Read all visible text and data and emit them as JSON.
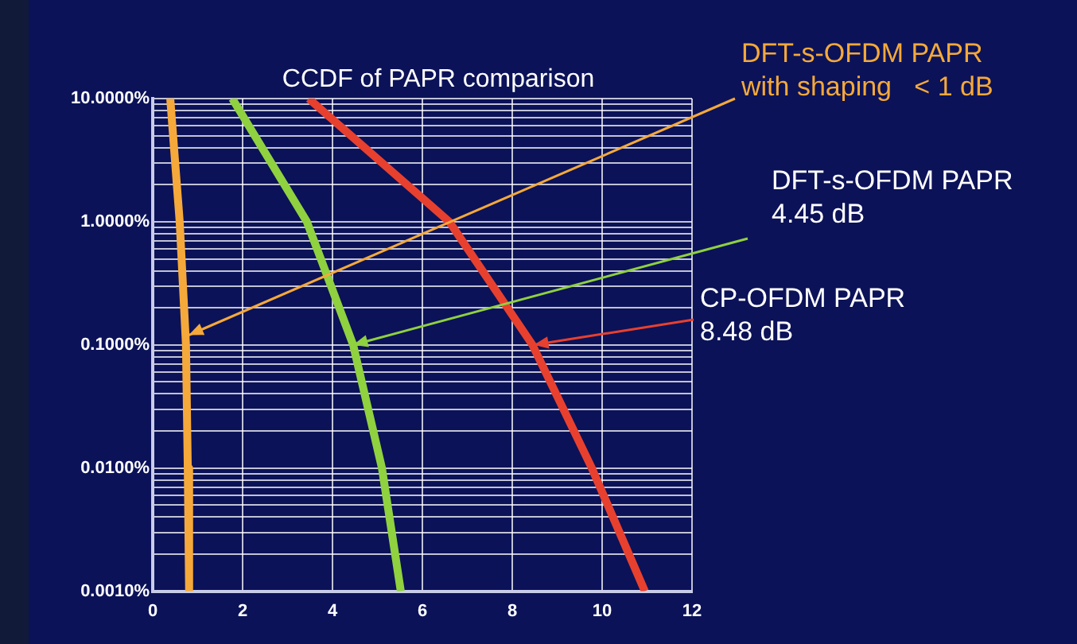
{
  "chart_data": {
    "type": "line",
    "title": "CCDF of PAPR comparison",
    "series": [
      {
        "color": "#f5a93a",
        "x": [
          0.39,
          0.6,
          0.74,
          0.78,
          0.81
        ],
        "values": [
          10,
          1,
          0.1,
          0.01,
          0.001
        ]
      },
      {
        "color": "#8fd13f",
        "x": [
          1.77,
          3.43,
          4.46,
          5.1,
          5.52
        ],
        "values": [
          10,
          1,
          0.1,
          0.01,
          0.001
        ]
      },
      {
        "color": "#e8402e",
        "x": [
          3.47,
          6.6,
          8.45,
          9.77,
          10.95
        ],
        "values": [
          10,
          1,
          0.1,
          0.01,
          0.001
        ]
      }
    ],
    "xlim": [
      0,
      12
    ],
    "xticks": [
      0,
      2,
      4,
      6,
      8,
      10,
      12
    ],
    "ylim": [
      0.001,
      10
    ],
    "log": "y",
    "yticks": [
      {
        "value": 0.001,
        "label": "0.0010%"
      },
      {
        "value": 0.002,
        "label": null
      },
      {
        "value": 0.003,
        "label": null
      },
      {
        "value": 0.004,
        "label": null
      },
      {
        "value": 0.005,
        "label": null
      },
      {
        "value": 0.006,
        "label": null
      },
      {
        "value": 0.007,
        "label": null
      },
      {
        "value": 0.008,
        "label": null
      },
      {
        "value": 0.009,
        "label": null
      },
      {
        "value": 0.01,
        "label": "0.0100%"
      },
      {
        "value": 0.02,
        "label": null
      },
      {
        "value": 0.03,
        "label": null
      },
      {
        "value": 0.04,
        "label": null
      },
      {
        "value": 0.05,
        "label": null
      },
      {
        "value": 0.06,
        "label": null
      },
      {
        "value": 0.07,
        "label": null
      },
      {
        "value": 0.08,
        "label": null
      },
      {
        "value": 0.09,
        "label": null
      },
      {
        "value": 0.1,
        "label": "0.1000%"
      },
      {
        "value": 0.2,
        "label": null
      },
      {
        "value": 0.3,
        "label": null
      },
      {
        "value": 0.4,
        "label": null
      },
      {
        "value": 0.5,
        "label": null
      },
      {
        "value": 0.6,
        "label": null
      },
      {
        "value": 0.7,
        "label": null
      },
      {
        "value": 0.8,
        "label": null
      },
      {
        "value": 0.9,
        "label": null
      },
      {
        "value": 1,
        "label": "1.0000%"
      },
      {
        "value": 2,
        "label": null
      },
      {
        "value": 3,
        "label": null
      },
      {
        "value": 4,
        "label": null
      },
      {
        "value": 5,
        "label": null
      },
      {
        "value": 6,
        "label": null
      },
      {
        "value": 7,
        "label": null
      },
      {
        "value": 8,
        "label": null
      },
      {
        "value": 9,
        "label": null
      },
      {
        "value": 10,
        "label": "10.0000%"
      }
    ],
    "grid": true,
    "line_style": "solid",
    "marker": "none",
    "legend": false,
    "annotations": [
      {
        "text": "DFT-s-OFDM PAPR\nwith shaping   < 1 dB",
        "x": 0.8,
        "y": 0.12
      },
      {
        "text": "DFT-s-OFDM PAPR\n4.45 dB",
        "x": 4.46,
        "y": 0.1
      },
      {
        "text": "CP-OFDM PAPR\n8.48 dB",
        "x": 8.48,
        "y": 0.1
      }
    ]
  }
}
